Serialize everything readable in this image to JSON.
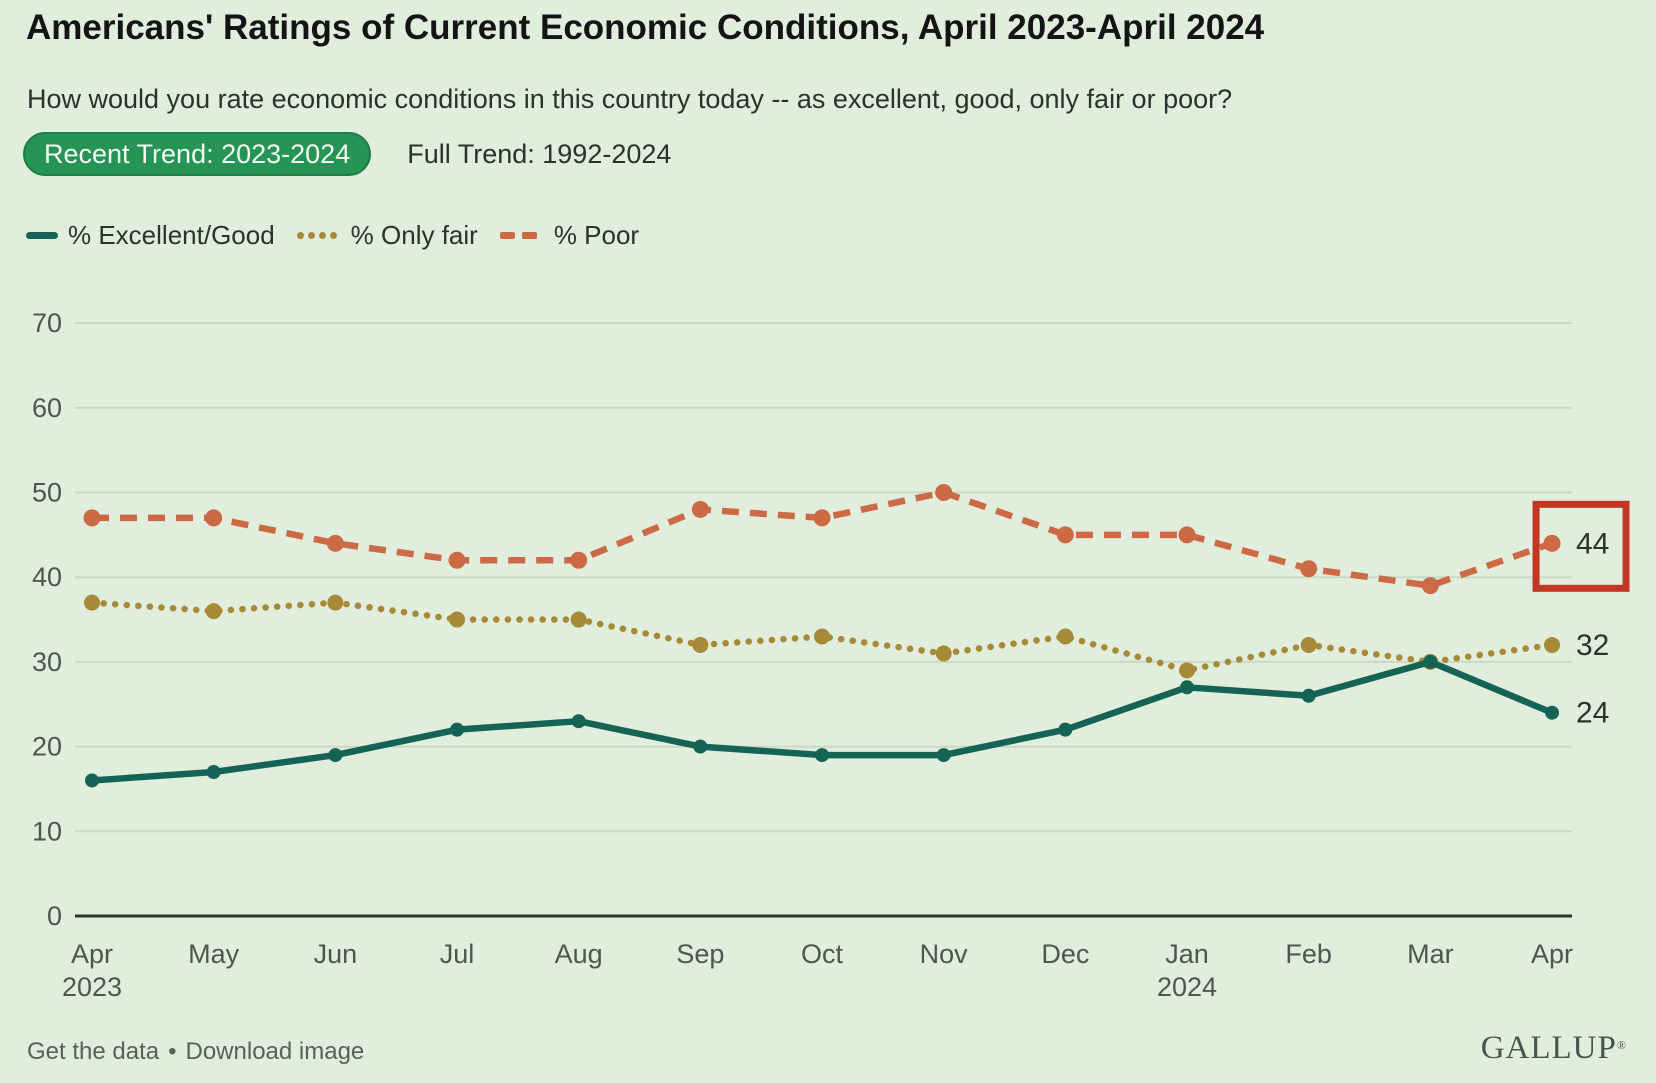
{
  "title": "Americans' Ratings of Current Economic Conditions, April 2023-April 2024",
  "subtitle": "How would you rate economic conditions in this country today -- as excellent, good, only fair or poor?",
  "tabs": [
    {
      "label": "Recent Trend: 2023-2024",
      "active": true
    },
    {
      "label": "Full Trend: 1992-2024",
      "active": false
    }
  ],
  "colors": {
    "background": "#e1eedd",
    "gridline": "#cbd8c8",
    "axis": "#2e332f",
    "tab_active_bg": "#259455",
    "highlight_box": "#c23723"
  },
  "chart_data": {
    "type": "line",
    "title": "Americans' Ratings of Current Economic Conditions, April 2023-April 2024",
    "categories": [
      "Apr",
      "May",
      "Jun",
      "Jul",
      "Aug",
      "Sep",
      "Oct",
      "Nov",
      "Dec",
      "Jan",
      "Feb",
      "Mar",
      "Apr"
    ],
    "category_year_labels": [
      {
        "index": 0,
        "label": "2023"
      },
      {
        "index": 9,
        "label": "2024"
      }
    ],
    "series": [
      {
        "name": "% Excellent/Good",
        "style": "solid",
        "color": "#156355",
        "values": [
          16,
          17,
          19,
          22,
          23,
          20,
          19,
          19,
          22,
          27,
          26,
          30,
          24
        ]
      },
      {
        "name": "% Only fair",
        "style": "dotted",
        "color": "#a68a38",
        "values": [
          37,
          36,
          37,
          35,
          35,
          32,
          33,
          31,
          33,
          29,
          32,
          30,
          32
        ]
      },
      {
        "name": "% Poor",
        "style": "dashed",
        "color": "#cb6a45",
        "values": [
          47,
          47,
          44,
          42,
          42,
          48,
          47,
          50,
          45,
          45,
          41,
          39,
          44
        ]
      }
    ],
    "end_labels": [
      24,
      32,
      44
    ],
    "yticks": [
      0,
      10,
      20,
      30,
      40,
      50,
      60,
      70
    ],
    "ylim": [
      0,
      70
    ],
    "grid": true,
    "legend_position": "top-left",
    "highlight": {
      "series": "% Poor",
      "point_index": 12,
      "value": 44,
      "box_color": "#c23723"
    }
  },
  "footer": {
    "links": [
      "Get the data",
      "Download image"
    ],
    "separator": "•",
    "brand": "GALLUP",
    "brand_mark": "®"
  }
}
